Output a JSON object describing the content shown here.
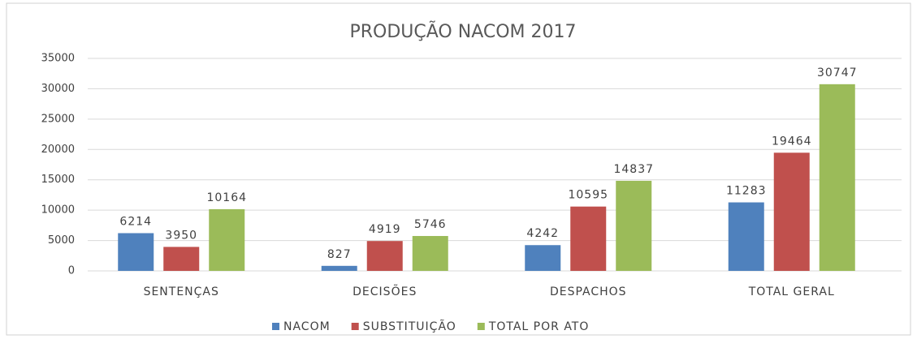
{
  "chart_data": {
    "type": "bar",
    "title": "PRODUÇÃO NACOM 2017",
    "categories": [
      "SENTENÇAS",
      "DECISÕES",
      "DESPACHOS",
      "TOTAL GERAL"
    ],
    "series": [
      {
        "name": "NACOM",
        "color": "#4f81bd",
        "values": [
          6214,
          827,
          4242,
          11283
        ]
      },
      {
        "name": "SUBSTITUIÇÃO",
        "color": "#c0504d",
        "values": [
          3950,
          4919,
          10595,
          19464
        ]
      },
      {
        "name": "TOTAL POR ATO",
        "color": "#9bbb59",
        "values": [
          10164,
          5746,
          14837,
          30747
        ]
      }
    ],
    "ylim": [
      0,
      35000
    ],
    "yticks": [
      0,
      5000,
      10000,
      15000,
      20000,
      25000,
      30000,
      35000
    ],
    "grid": true,
    "legend": "bottom"
  }
}
